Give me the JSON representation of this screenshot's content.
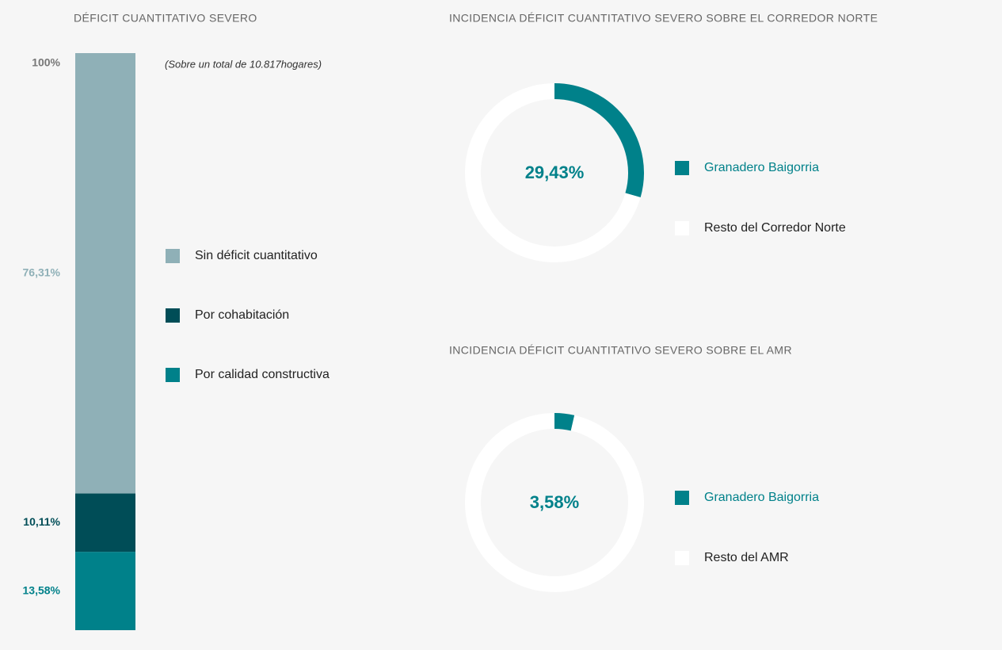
{
  "chart_data": [
    {
      "type": "stacked_bar",
      "title": "DÉFICIT CUANTITATIVO SEVERO",
      "subtitle": "(Sobre un total de 10.817hogares)",
      "ylim": [
        0,
        100
      ],
      "yticks": [
        {
          "value": 100,
          "label": "100%"
        }
      ],
      "series": [
        {
          "name": "Sin déficit cuantitativo",
          "color": "#8fb0b7",
          "values": [
            76.31
          ],
          "value_labels": [
            "76,31%"
          ]
        },
        {
          "name": "Por cohabitación",
          "color": "#004d57",
          "values": [
            10.11
          ],
          "value_labels": [
            "10,11%"
          ]
        },
        {
          "name": "Por calidad constructiva",
          "color": "#00818a",
          "values": [
            13.58
          ],
          "value_labels": [
            "13,58%"
          ]
        }
      ]
    },
    {
      "type": "donut",
      "title": "INCIDENCIA DÉFICIT CUANTITATIVO SEVERO SOBRE EL CORREDOR NORTE",
      "categories": [
        "Granadero Baigorria",
        "Resto del Corredor Norte"
      ],
      "values": [
        29.43,
        70.57
      ],
      "value_labels": [
        "29,43%",
        null
      ],
      "colors": [
        "#00818a",
        "#ffffff"
      ]
    },
    {
      "type": "donut",
      "title": "INCIDENCIA DÉFICIT CUANTITATIVO SEVERO SOBRE EL AMR",
      "categories": [
        "Granadero Baigorria",
        "Resto del AMR"
      ],
      "values": [
        3.58,
        96.42
      ],
      "value_labels": [
        "3,58%",
        null
      ],
      "colors": [
        "#00818a",
        "#ffffff"
      ]
    }
  ]
}
